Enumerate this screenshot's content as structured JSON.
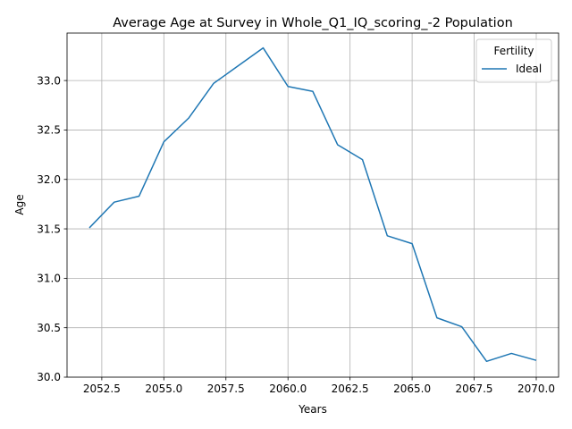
{
  "chart_data": {
    "type": "line",
    "title": "Average Age at Survey in Whole_Q1_IQ_scoring_-2 Population",
    "xlabel": "Years",
    "ylabel": "Age",
    "xlim": [
      2051.1,
      2070.9
    ],
    "ylim": [
      30.0,
      33.48
    ],
    "x_ticks": [
      2052.5,
      2055.0,
      2057.5,
      2060.0,
      2062.5,
      2065.0,
      2067.5,
      2070.0
    ],
    "x_tick_labels": [
      "2052.5",
      "2055.0",
      "2057.5",
      "2060.0",
      "2062.5",
      "2065.0",
      "2067.5",
      "2070.0"
    ],
    "y_ticks": [
      30.0,
      30.5,
      31.0,
      31.5,
      32.0,
      32.5,
      33.0
    ],
    "y_tick_labels": [
      "30.0",
      "30.5",
      "31.0",
      "31.5",
      "32.0",
      "32.5",
      "33.0"
    ],
    "grid": true,
    "legend": {
      "title": "Fertility",
      "placement": "top-right"
    },
    "x": [
      2052,
      2053,
      2054,
      2055,
      2056,
      2057,
      2058,
      2059,
      2060,
      2061,
      2062,
      2063,
      2064,
      2065,
      2066,
      2067,
      2068,
      2069,
      2070
    ],
    "series": [
      {
        "name": "Ideal",
        "color": "#1f77b4",
        "values": [
          31.51,
          31.77,
          31.83,
          32.38,
          32.62,
          32.97,
          33.15,
          33.33,
          32.94,
          32.89,
          32.35,
          32.2,
          31.43,
          31.35,
          30.6,
          30.51,
          30.16,
          30.24,
          30.17
        ]
      }
    ]
  }
}
